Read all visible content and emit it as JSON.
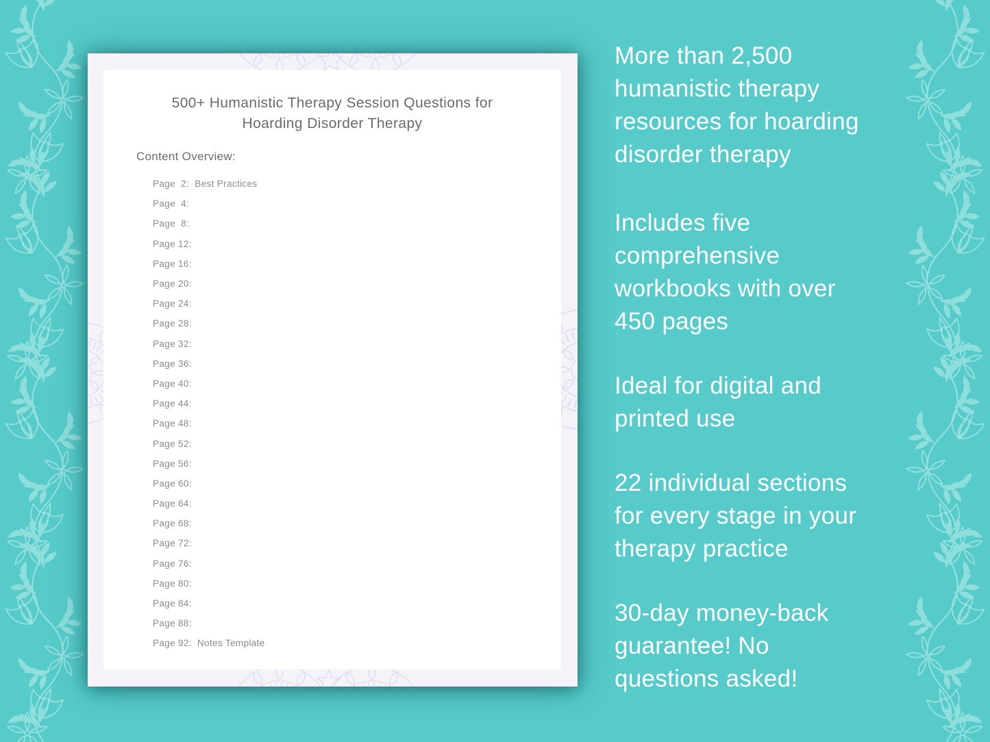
{
  "colors": {
    "background_teal": "#56cbca",
    "vine_pattern": "#8edfdc",
    "vine_stroke": "#97e1de",
    "document_border": "#f5f2fa",
    "document_page": "#ffffff",
    "watermark": "#e0e1ee",
    "title_text": "#6b6b6b",
    "toc_text": "#8a8a8a",
    "marketing_text": "#ffffff"
  },
  "document": {
    "title_lines": [
      "500+ Humanistic Therapy Session Questions for",
      "Hoarding Disorder Therapy"
    ],
    "overview_label": "Content Overview:",
    "toc": [
      "Page  2:  Best Practices",
      "Page  4:",
      "Page  8:",
      "Page 12:",
      "Page 16:",
      "Page 20:",
      "Page 24:",
      "Page 28:",
      "Page 32:",
      "Page 36:",
      "Page 40:",
      "Page 44:",
      "Page 48:",
      "Page 52:",
      "Page 56:",
      "Page 60:",
      "Page 64:",
      "Page 68:",
      "Page 72:",
      "Page 76:",
      "Page 80:",
      "Page 84:",
      "Page 88:",
      "Page 92:  Notes Template"
    ]
  },
  "marketing": {
    "paragraphs": [
      {
        "lines": [
          "More than 2,500",
          "humanistic therapy",
          "resources for hoarding",
          "disorder therapy"
        ]
      },
      {
        "lines": [
          "Includes five",
          "comprehensive",
          "workbooks with over",
          "450 pages"
        ]
      },
      {
        "lines": [
          "Ideal for digital and",
          "printed use"
        ]
      },
      {
        "lines": [
          "22 individual sections",
          "for every stage in your",
          "therapy practice"
        ]
      },
      {
        "lines": [
          "30-day money-back",
          "guarantee! No",
          "questions asked!"
        ]
      }
    ]
  }
}
